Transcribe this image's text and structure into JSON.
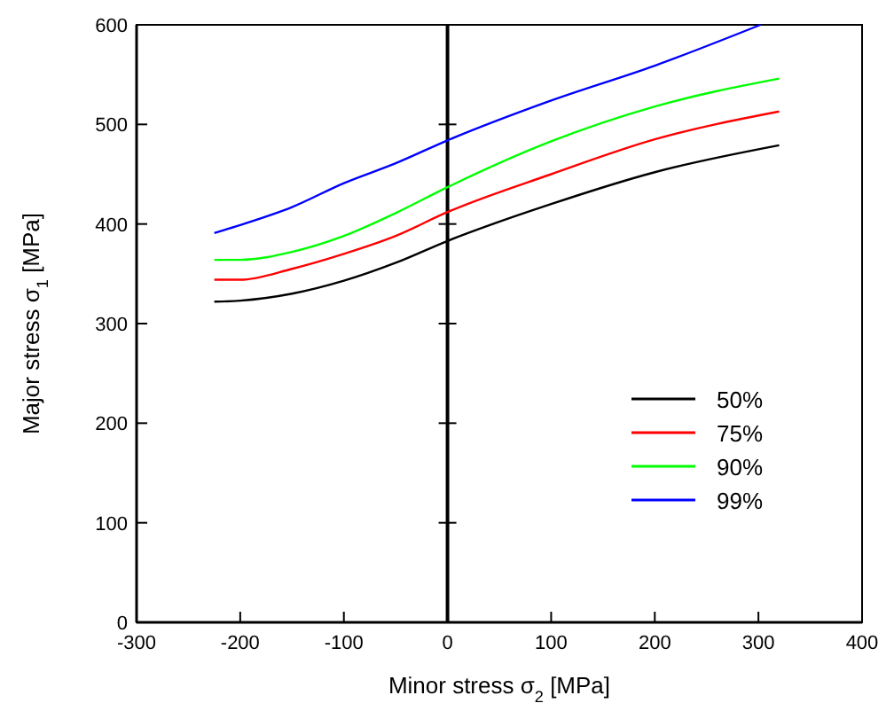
{
  "chart_data": {
    "type": "line",
    "xlabel": "Minor stress σ$_{2}$ [MPa]",
    "ylabel": "Major stress σ$_{1}$ [MPa]",
    "xlim": [
      -300,
      400
    ],
    "xticks": [
      -300,
      -200,
      -100,
      0,
      100,
      200,
      300,
      400
    ],
    "ylim": [
      0,
      600
    ],
    "yticks": [
      0,
      100,
      200,
      300,
      400,
      500,
      600
    ],
    "grid": false,
    "legend": "right",
    "marker": "none",
    "line_style": "solid",
    "ref_lines": [
      {
        "axis": "x",
        "value": 0,
        "color": "#000000"
      }
    ],
    "x": [
      -225,
      -200,
      -150,
      -100,
      -50,
      0,
      100,
      200,
      320
    ],
    "series": [
      {
        "name": "50%",
        "color": "#000000",
        "values": [
          322,
          323,
          330,
          343,
          361,
          383,
          420,
          452,
          479
        ]
      },
      {
        "name": "75%",
        "color": "#ff0000",
        "values": [
          344,
          344,
          355,
          370,
          388,
          412,
          450,
          485,
          513
        ]
      },
      {
        "name": "90%",
        "color": "#00ff00",
        "values": [
          364,
          364,
          372,
          388,
          411,
          437,
          483,
          518,
          546
        ]
      },
      {
        "name": "99%",
        "color": "#0000ff",
        "x": [
          -225,
          -200,
          -150,
          -100,
          -50,
          0,
          100,
          200,
          302
        ],
        "values": [
          391,
          399,
          417,
          441,
          461,
          484,
          524,
          559,
          600
        ]
      }
    ]
  }
}
